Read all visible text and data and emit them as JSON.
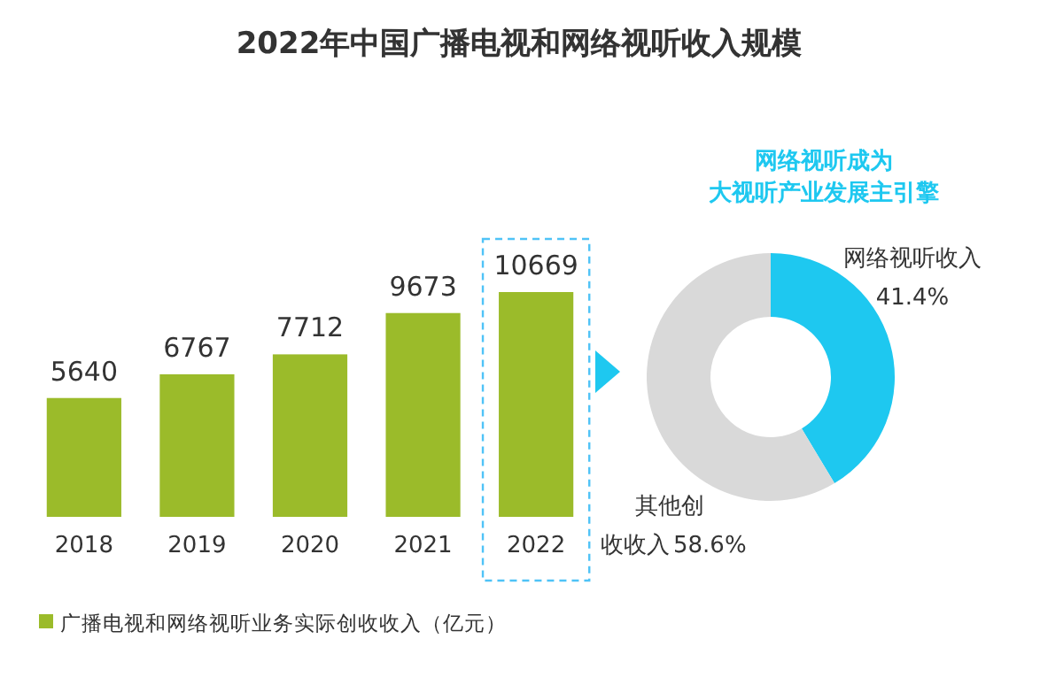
{
  "chart_data": [
    {
      "type": "bar",
      "title": "2022年中国广播电视和网络视听收入规模",
      "categories": [
        "2018",
        "2019",
        "2020",
        "2021",
        "2022"
      ],
      "series": [
        {
          "name": "广播电视和网络视听业务实际创收收入（亿元）",
          "color": "#9bbb2a",
          "values": [
            5640,
            6767,
            7712,
            9673,
            10669
          ]
        }
      ],
      "data_labels": true,
      "legend": "bottom left"
    },
    {
      "type": "donut",
      "categories": [
        "网络视听收入",
        "其他创收收入"
      ],
      "values": [
        41.4,
        58.6
      ],
      "colors": [
        "#1ec8f0",
        "#d9d9d9"
      ],
      "annotations": [
        "网络视听成为",
        "大视听产业发展主引擎"
      ],
      "value_labels": [
        "41.4%",
        "58.6%"
      ]
    }
  ]
}
